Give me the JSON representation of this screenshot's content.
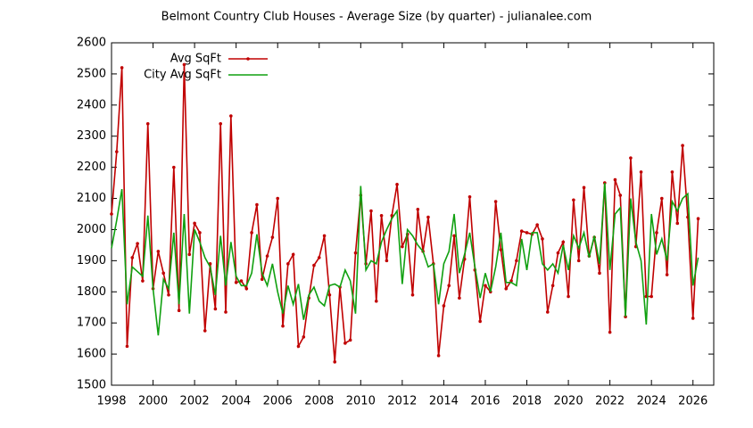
{
  "chart_data": {
    "type": "line",
    "title": "Belmont Country Club Houses - Average Size (by quarter) - julianalee.com",
    "x": [
      1998,
      1998.25,
      1998.5,
      1998.75,
      1999,
      1999.25,
      1999.5,
      1999.75,
      2000,
      2000.25,
      2000.5,
      2000.75,
      2001,
      2001.25,
      2001.5,
      2001.75,
      2002,
      2002.25,
      2002.5,
      2002.75,
      2003,
      2003.25,
      2003.5,
      2003.75,
      2004,
      2004.25,
      2004.5,
      2004.75,
      2005,
      2005.25,
      2005.5,
      2005.75,
      2006,
      2006.25,
      2006.5,
      2006.75,
      2007,
      2007.25,
      2007.5,
      2007.75,
      2008,
      2008.25,
      2008.5,
      2008.75,
      2009,
      2009.25,
      2009.5,
      2009.75,
      2010,
      2010.25,
      2010.5,
      2010.75,
      2011,
      2011.25,
      2011.5,
      2011.75,
      2012,
      2012.25,
      2012.5,
      2012.75,
      2013,
      2013.25,
      2013.5,
      2013.75,
      2014,
      2014.25,
      2014.5,
      2014.75,
      2015,
      2015.25,
      2015.5,
      2015.75,
      2016,
      2016.25,
      2016.5,
      2016.75,
      2017,
      2017.25,
      2017.5,
      2017.75,
      2018,
      2018.25,
      2018.5,
      2018.75,
      2019,
      2019.25,
      2019.5,
      2019.75,
      2020,
      2020.25,
      2020.5,
      2020.75,
      2021,
      2021.25,
      2021.5,
      2021.75,
      2022,
      2022.25,
      2022.5,
      2022.75,
      2023,
      2023.25,
      2023.5,
      2023.75,
      2024,
      2024.25,
      2024.5,
      2024.75,
      2025,
      2025.25,
      2025.5,
      2025.75,
      2026,
      2026.25
    ],
    "series": [
      {
        "name": "Avg SqFt",
        "color": "#c00000",
        "markers": true,
        "values": [
          2050,
          2250,
          2520,
          1625,
          1910,
          1955,
          1835,
          2340,
          1810,
          1930,
          1860,
          1790,
          2200,
          1740,
          2530,
          1920,
          2020,
          1990,
          1675,
          1890,
          1745,
          2340,
          1735,
          2365,
          1830,
          1835,
          1810,
          1990,
          2080,
          1840,
          1915,
          1975,
          2100,
          1690,
          1890,
          1920,
          1625,
          1655,
          1780,
          1885,
          1910,
          1980,
          1790,
          1575,
          1815,
          1635,
          1645,
          1925,
          2110,
          1890,
          2060,
          1770,
          2045,
          1900,
          2045,
          2145,
          1945,
          1985,
          1790,
          2065,
          1930,
          2040,
          1890,
          1595,
          1755,
          1820,
          1980,
          1780,
          1905,
          2105,
          1870,
          1705,
          1820,
          1800,
          2090,
          1935,
          1810,
          1835,
          1900,
          1995,
          1990,
          1985,
          2015,
          1970,
          1735,
          1820,
          1925,
          1960,
          1785,
          2095,
          1900,
          2135,
          1915,
          1975,
          1860,
          2150,
          1670,
          2160,
          2110,
          1720,
          2230,
          1945,
          2185,
          1785,
          1785,
          1990,
          2100,
          1855,
          2185,
          2020,
          2270,
          2040,
          1715,
          2035
        ]
      },
      {
        "name": "City Avg SqFt",
        "color": "#10a010",
        "markers": false,
        "values": [
          1940,
          2030,
          2130,
          1760,
          1880,
          1865,
          1850,
          2045,
          1810,
          1660,
          1840,
          1810,
          1990,
          1760,
          2050,
          1730,
          2000,
          1960,
          1910,
          1880,
          1790,
          1980,
          1820,
          1960,
          1850,
          1820,
          1820,
          1860,
          1985,
          1860,
          1820,
          1890,
          1800,
          1730,
          1820,
          1760,
          1825,
          1710,
          1790,
          1815,
          1770,
          1755,
          1820,
          1825,
          1815,
          1870,
          1835,
          1730,
          2140,
          1870,
          1900,
          1890,
          1960,
          2000,
          2035,
          2060,
          1825,
          2000,
          1980,
          1950,
          1930,
          1880,
          1890,
          1760,
          1890,
          1930,
          2050,
          1860,
          1920,
          1990,
          1880,
          1780,
          1860,
          1800,
          1880,
          1990,
          1830,
          1830,
          1820,
          1970,
          1870,
          1990,
          1990,
          1890,
          1870,
          1890,
          1860,
          1950,
          1870,
          1980,
          1940,
          1990,
          1910,
          1980,
          1890,
          2150,
          1870,
          2050,
          2070,
          1720,
          2100,
          1960,
          1900,
          1695,
          2050,
          1920,
          1970,
          1900,
          2090,
          2060,
          2100,
          2115,
          1820,
          1910
        ]
      }
    ],
    "xlim": [
      1998,
      2027
    ],
    "xticks": [
      1998,
      2000,
      2002,
      2004,
      2006,
      2008,
      2010,
      2012,
      2014,
      2016,
      2018,
      2020,
      2022,
      2024,
      2026
    ],
    "ylim": [
      1500,
      2600
    ],
    "yticks": [
      1500,
      1600,
      1700,
      1800,
      1900,
      2000,
      2100,
      2200,
      2300,
      2400,
      2500,
      2600
    ],
    "grid": false,
    "legend": "top-left"
  }
}
